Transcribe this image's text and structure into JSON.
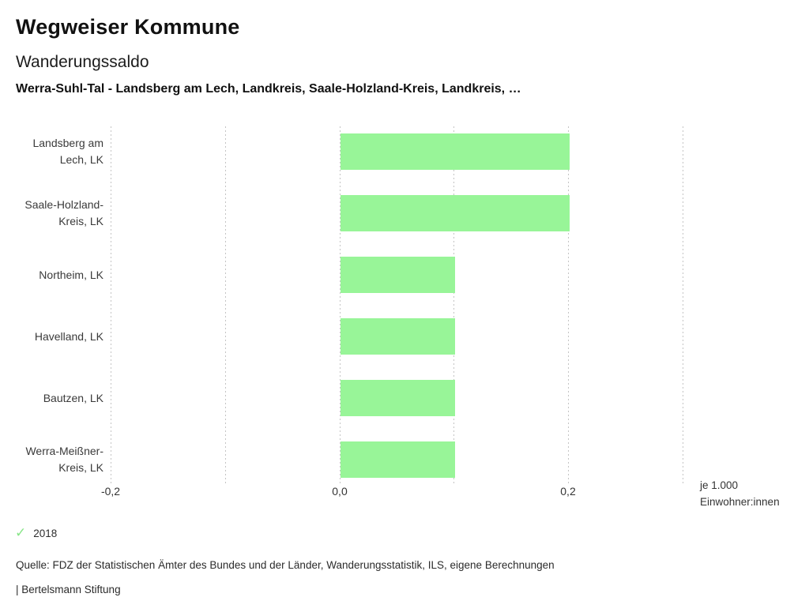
{
  "header": {
    "app_title": "Wegweiser Kommune",
    "indicator_title": "Wanderungssaldo",
    "entities_line": "Werra-Suhl-Tal - Landsberg am Lech, Landkreis, Saale-Holzland-Kreis, Landkreis, …"
  },
  "chart_data": {
    "type": "bar",
    "orientation": "horizontal",
    "title": "Wanderungssaldo",
    "unit": "je 1.000 Einwohner:innen",
    "series_name": "2018",
    "categories": [
      "Landsberg am Lech, LK",
      "Saale-Holzland-Kreis, LK",
      "Northeim, LK",
      "Havelland, LK",
      "Bautzen, LK",
      "Werra-Meißner-Kreis, LK"
    ],
    "category_label_lines": [
      [
        "Landsberg am",
        "Lech, LK"
      ],
      [
        "Saale-Holzland-",
        "Kreis, LK"
      ],
      [
        "Northeim, LK"
      ],
      [
        "Havelland, LK"
      ],
      [
        "Bautzen, LK"
      ],
      [
        "Werra-Meißner-",
        "Kreis, LK"
      ]
    ],
    "values": [
      0.2,
      0.2,
      0.1,
      0.1,
      0.1,
      0.1
    ],
    "xlim": [
      -0.2,
      0.3
    ],
    "gridlines": [
      -0.2,
      -0.1,
      0,
      0.1,
      0.2,
      0.3
    ],
    "x_tick_labels": [
      {
        "value": -0.2,
        "label": "-0,2"
      },
      {
        "value": 0,
        "label": "0,0"
      },
      {
        "value": 0.2,
        "label": "0,2"
      }
    ],
    "unit_label_lines": [
      "je 1.000",
      "Einwohner:innen"
    ],
    "bar_color": "#98f598",
    "gridline_color": "#c4c4c4",
    "grid": true,
    "legend_position": "bottom-left"
  },
  "legend": {
    "check_icon": "✓",
    "check_color": "#87e587",
    "year": "2018"
  },
  "footer": {
    "source": "Quelle: FDZ der Statistischen Ämter des Bundes und der Länder, Wanderungsstatistik, ILS, eigene Berechnungen",
    "brand": "| Bertelsmann Stiftung"
  }
}
